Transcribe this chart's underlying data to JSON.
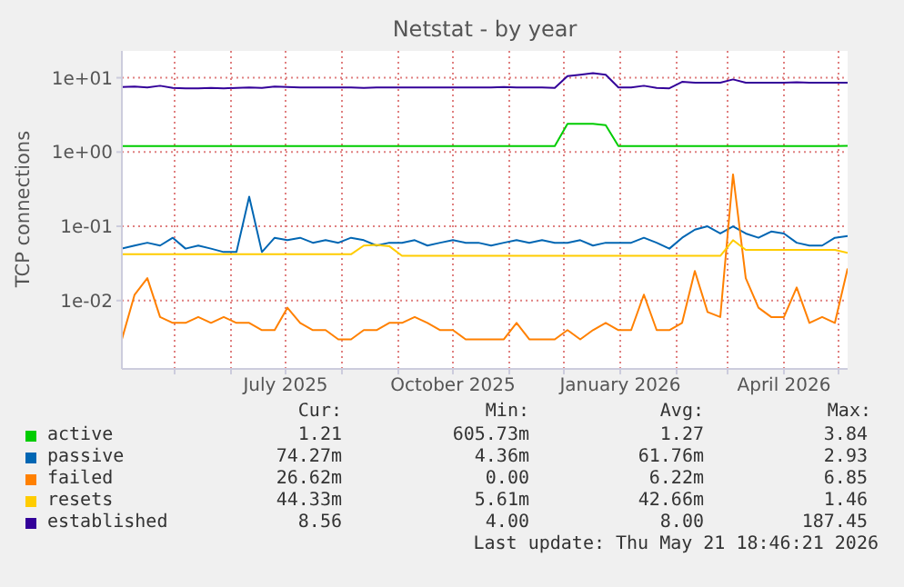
{
  "chart_data": {
    "type": "line",
    "title": "Netstat - by year",
    "ylabel": "TCP connections",
    "log": "y",
    "grid": true,
    "legend": "bottom",
    "marker": "none",
    "line_style": "solid",
    "ylim": [
      0.0012,
      23
    ],
    "yticks": [
      {
        "value": 0.01,
        "label": "1e-02"
      },
      {
        "value": 0.1,
        "label": "1e-01"
      },
      {
        "value": 1,
        "label": "1e+00"
      },
      {
        "value": 10,
        "label": "1e+01"
      }
    ],
    "xlim": [
      "2025-04-02",
      "2026-05-06"
    ],
    "xticks": [
      {
        "value": "2025-05-01",
        "label": null
      },
      {
        "value": "2025-06-01",
        "label": null
      },
      {
        "value": "2025-07-01",
        "label": "July 2025"
      },
      {
        "value": "2025-08-01",
        "label": null
      },
      {
        "value": "2025-09-01",
        "label": null
      },
      {
        "value": "2025-10-01",
        "label": "October 2025"
      },
      {
        "value": "2025-11-01",
        "label": null
      },
      {
        "value": "2025-12-01",
        "label": null
      },
      {
        "value": "2026-01-01",
        "label": "January 2026"
      },
      {
        "value": "2026-02-01",
        "label": null
      },
      {
        "value": "2026-03-01",
        "label": null
      },
      {
        "value": "2026-04-01",
        "label": "April 2026"
      },
      {
        "value": "2026-05-01",
        "label": null
      }
    ],
    "x": [
      "2025-04-02",
      "2025-04-09",
      "2025-04-16",
      "2025-04-23",
      "2025-04-30",
      "2025-05-07",
      "2025-05-14",
      "2025-05-21",
      "2025-05-28",
      "2025-06-04",
      "2025-06-11",
      "2025-06-18",
      "2025-06-25",
      "2025-07-02",
      "2025-07-09",
      "2025-07-16",
      "2025-07-23",
      "2025-07-30",
      "2025-08-06",
      "2025-08-13",
      "2025-08-20",
      "2025-08-27",
      "2025-09-03",
      "2025-09-10",
      "2025-09-17",
      "2025-09-24",
      "2025-10-01",
      "2025-10-08",
      "2025-10-15",
      "2025-10-22",
      "2025-10-29",
      "2025-11-05",
      "2025-11-12",
      "2025-11-19",
      "2025-11-26",
      "2025-12-03",
      "2025-12-10",
      "2025-12-17",
      "2025-12-24",
      "2025-12-31",
      "2026-01-07",
      "2026-01-14",
      "2026-01-21",
      "2026-01-28",
      "2026-02-04",
      "2026-02-11",
      "2026-02-18",
      "2026-02-25",
      "2026-03-04",
      "2026-03-11",
      "2026-03-18",
      "2026-03-25",
      "2026-04-01",
      "2026-04-08",
      "2026-04-15",
      "2026-04-22",
      "2026-04-29",
      "2026-05-06"
    ],
    "series": [
      {
        "name": "active",
        "color": "#00cc00",
        "values": [
          1.2,
          1.2,
          1.2,
          1.2,
          1.2,
          1.2,
          1.2,
          1.2,
          1.2,
          1.2,
          1.2,
          1.2,
          1.2,
          1.2,
          1.2,
          1.2,
          1.2,
          1.2,
          1.2,
          1.2,
          1.2,
          1.2,
          1.2,
          1.2,
          1.2,
          1.2,
          1.2,
          1.2,
          1.2,
          1.2,
          1.2,
          1.2,
          1.2,
          1.2,
          1.2,
          2.4,
          2.4,
          2.4,
          2.3,
          1.2,
          1.2,
          1.2,
          1.2,
          1.2,
          1.2,
          1.2,
          1.2,
          1.2,
          1.2,
          1.2,
          1.2,
          1.2,
          1.2,
          1.2,
          1.2,
          1.2,
          1.2,
          1.21
        ]
      },
      {
        "name": "passive",
        "color": "#0066b3",
        "values": [
          0.05,
          0.055,
          0.06,
          0.055,
          0.07,
          0.05,
          0.055,
          0.05,
          0.045,
          0.045,
          0.25,
          0.045,
          0.07,
          0.065,
          0.07,
          0.06,
          0.065,
          0.06,
          0.07,
          0.065,
          0.055,
          0.06,
          0.06,
          0.065,
          0.055,
          0.06,
          0.065,
          0.06,
          0.06,
          0.055,
          0.06,
          0.065,
          0.06,
          0.065,
          0.06,
          0.06,
          0.065,
          0.055,
          0.06,
          0.06,
          0.06,
          0.07,
          0.06,
          0.05,
          0.07,
          0.09,
          0.1,
          0.08,
          0.1,
          0.08,
          0.07,
          0.085,
          0.08,
          0.06,
          0.055,
          0.055,
          0.07,
          0.074
        ]
      },
      {
        "name": "failed",
        "color": "#ff8000",
        "values": [
          0.003,
          0.012,
          0.02,
          0.006,
          0.005,
          0.005,
          0.006,
          0.005,
          0.006,
          0.005,
          0.005,
          0.004,
          0.004,
          0.008,
          0.005,
          0.004,
          0.004,
          0.003,
          0.003,
          0.004,
          0.004,
          0.005,
          0.005,
          0.006,
          0.005,
          0.004,
          0.004,
          0.003,
          0.003,
          0.003,
          0.003,
          0.005,
          0.003,
          0.003,
          0.003,
          0.004,
          0.003,
          0.004,
          0.005,
          0.004,
          0.004,
          0.012,
          0.004,
          0.004,
          0.005,
          0.025,
          0.007,
          0.006,
          0.5,
          0.02,
          0.008,
          0.006,
          0.006,
          0.015,
          0.005,
          0.006,
          0.005,
          0.027
        ]
      },
      {
        "name": "resets",
        "color": "#ffcc00",
        "values": [
          0.042,
          0.042,
          0.042,
          0.042,
          0.042,
          0.042,
          0.042,
          0.042,
          0.042,
          0.042,
          0.042,
          0.042,
          0.042,
          0.042,
          0.042,
          0.042,
          0.042,
          0.042,
          0.042,
          0.055,
          0.056,
          0.054,
          0.04,
          0.04,
          0.04,
          0.04,
          0.04,
          0.04,
          0.04,
          0.04,
          0.04,
          0.04,
          0.04,
          0.04,
          0.04,
          0.04,
          0.04,
          0.04,
          0.04,
          0.04,
          0.04,
          0.04,
          0.04,
          0.04,
          0.04,
          0.04,
          0.04,
          0.04,
          0.065,
          0.048,
          0.048,
          0.048,
          0.048,
          0.048,
          0.048,
          0.048,
          0.048,
          0.044
        ]
      },
      {
        "name": "established",
        "color": "#330099",
        "values": [
          7.5,
          7.6,
          7.4,
          7.8,
          7.3,
          7.2,
          7.2,
          7.3,
          7.2,
          7.3,
          7.4,
          7.3,
          7.6,
          7.5,
          7.4,
          7.4,
          7.4,
          7.4,
          7.4,
          7.3,
          7.4,
          7.4,
          7.4,
          7.4,
          7.4,
          7.4,
          7.4,
          7.4,
          7.4,
          7.4,
          7.5,
          7.4,
          7.4,
          7.4,
          7.3,
          10.5,
          11,
          11.5,
          11,
          7.4,
          7.4,
          7.8,
          7.3,
          7.2,
          8.8,
          8.6,
          8.6,
          8.6,
          9.5,
          8.6,
          8.6,
          8.6,
          8.6,
          8.7,
          8.6,
          8.6,
          8.6,
          8.56
        ]
      }
    ],
    "annotations": [
      "Cur:",
      "Min:",
      "Avg:",
      "Max:",
      "1.21",
      "605.73m",
      "1.27",
      "3.84",
      "74.27m",
      "4.36m",
      "61.76m",
      "2.93",
      "26.62m",
      "0.00",
      "6.22m",
      "6.85",
      "44.33m",
      "5.61m",
      "42.66m",
      "1.46",
      "8.56",
      "4.00",
      "8.00",
      "187.45",
      "Last update: Thu May 21 18:46:21 2026"
    ]
  }
}
